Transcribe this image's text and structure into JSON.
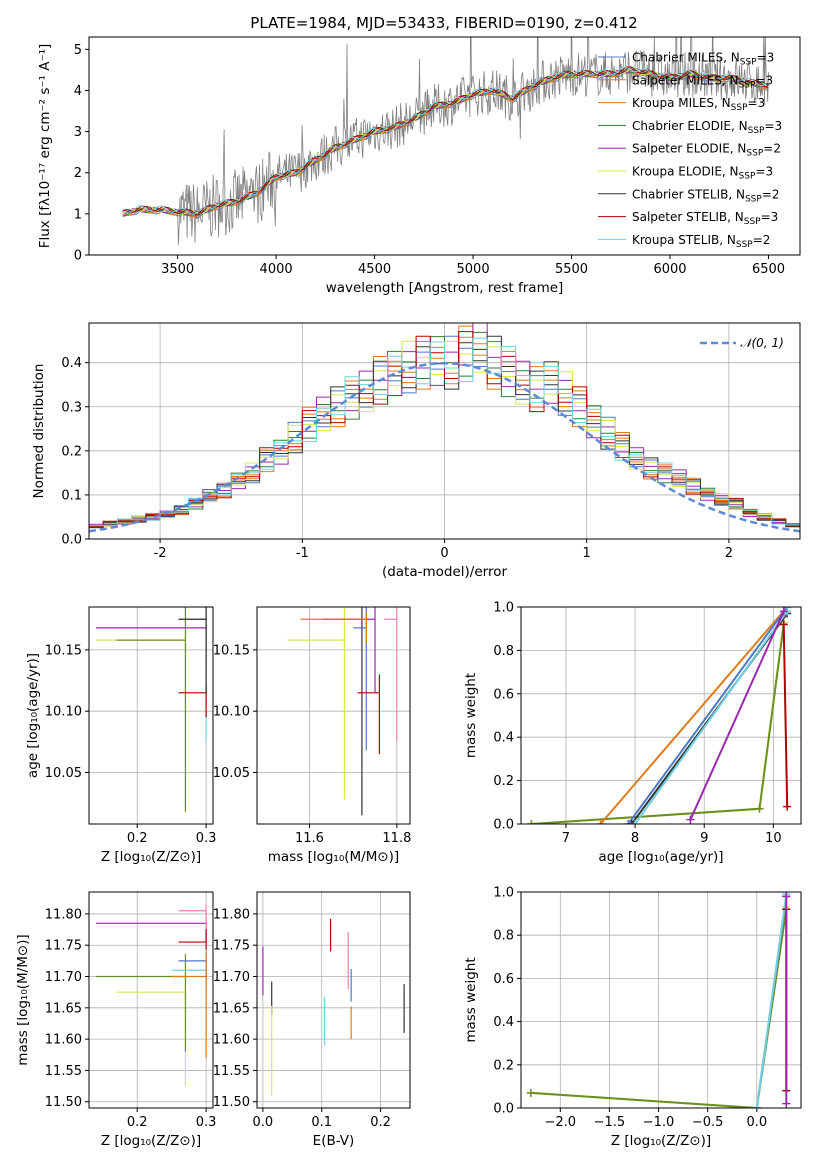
{
  "colors": {
    "blue": "#4e79c9",
    "orange": "#e07b1a",
    "olive": "#6b8e23",
    "green": "#2e7d32",
    "purple": "#9c27b0",
    "yellow": "#d8e84a",
    "dark": "#333333",
    "red": "#b00000",
    "cyan": "#70d0e0",
    "pink": "#f080b0",
    "gray": "#808080",
    "grid": "#b0b0b0"
  },
  "series_models": [
    {
      "label": "Chabrier MILES",
      "nssp": "3",
      "color": "#4e79c9"
    },
    {
      "label": "Salpeter MILES",
      "nssp": "3",
      "color": "#e07b1a"
    },
    {
      "label": "Kroupa MILES",
      "nssp": "3",
      "color": "#e07b1a"
    },
    {
      "label": "Chabrier ELODIE",
      "nssp": "3",
      "color": "#2e7d32"
    },
    {
      "label": "Salpeter ELODIE",
      "nssp": "2",
      "color": "#9c27b0"
    },
    {
      "label": "Kroupa ELODIE",
      "nssp": "3",
      "color": "#d8e84a"
    },
    {
      "label": "Chabrier STELIB",
      "nssp": "2",
      "color": "#333333"
    },
    {
      "label": "Salpeter STELIB",
      "nssp": "3",
      "color": "#b00000"
    },
    {
      "label": "Kroupa STELIB",
      "nssp": "2",
      "color": "#70d0e0"
    }
  ],
  "chart_data": [
    {
      "id": "spectrum",
      "type": "line",
      "title": "PLATE=1984, MJD=53433, FIBERID=0190, z=0.412",
      "xlabel": "wavelength [Angstrom, rest frame]",
      "ylabel": "Flux [fλ10⁻¹⁷ erg cm⁻² s⁻¹ A⁻¹]",
      "xlim": [
        3050,
        6660
      ],
      "ylim": [
        0,
        5.3
      ],
      "xticks": [
        3500,
        4000,
        4500,
        5000,
        5500,
        6000,
        6500
      ],
      "yticks": [
        0,
        1,
        2,
        3,
        4,
        5
      ],
      "model_x": [
        3220,
        3300,
        3400,
        3500,
        3600,
        3700,
        3800,
        3900,
        4000,
        4100,
        4200,
        4300,
        4400,
        4500,
        4600,
        4700,
        4800,
        4900,
        5000,
        5100,
        5200,
        5300,
        5400,
        5500,
        5600,
        5700,
        5800,
        5900,
        6000,
        6100,
        6200,
        6300,
        6400,
        6500
      ],
      "model_y": [
        1.0,
        1.1,
        1.1,
        1.05,
        1.0,
        1.2,
        1.3,
        1.5,
        1.9,
        2.0,
        2.3,
        2.6,
        2.8,
        3.0,
        3.1,
        3.3,
        3.6,
        3.7,
        3.9,
        4.0,
        3.8,
        4.1,
        4.3,
        4.4,
        4.4,
        4.4,
        4.5,
        4.4,
        4.3,
        4.4,
        4.3,
        4.3,
        4.2,
        4.1
      ],
      "legend": "upper right"
    },
    {
      "id": "residuals",
      "type": "histogram",
      "xlabel": "(data-model)/error",
      "ylabel": "Normed distribution",
      "xlim": [
        -2.5,
        2.5
      ],
      "ylim": [
        0,
        0.49
      ],
      "xticks": [
        -2,
        -1,
        0,
        1,
        2
      ],
      "yticks": [
        0.0,
        0.1,
        0.2,
        0.3,
        0.4
      ],
      "bin_width": 0.1,
      "hist_centers": [
        -2.45,
        -2.35,
        -2.25,
        -2.15,
        -2.05,
        -1.95,
        -1.85,
        -1.75,
        -1.65,
        -1.55,
        -1.45,
        -1.35,
        -1.25,
        -1.15,
        -1.05,
        -0.95,
        -0.85,
        -0.75,
        -0.65,
        -0.55,
        -0.45,
        -0.35,
        -0.25,
        -0.15,
        -0.05,
        0.05,
        0.15,
        0.25,
        0.35,
        0.45,
        0.55,
        0.65,
        0.75,
        0.85,
        0.95,
        1.05,
        1.15,
        1.25,
        1.35,
        1.45,
        1.55,
        1.65,
        1.75,
        1.85,
        1.95,
        2.05,
        2.15,
        2.25,
        2.35,
        2.45
      ],
      "hist_values": [
        0.03,
        0.035,
        0.04,
        0.045,
        0.05,
        0.055,
        0.065,
        0.08,
        0.1,
        0.11,
        0.13,
        0.15,
        0.18,
        0.2,
        0.23,
        0.26,
        0.28,
        0.3,
        0.32,
        0.34,
        0.36,
        0.37,
        0.39,
        0.4,
        0.41,
        0.4,
        0.42,
        0.43,
        0.4,
        0.38,
        0.36,
        0.34,
        0.35,
        0.33,
        0.3,
        0.27,
        0.24,
        0.21,
        0.18,
        0.16,
        0.15,
        0.14,
        0.12,
        0.1,
        0.09,
        0.08,
        0.06,
        0.05,
        0.04,
        0.03
      ],
      "gaussian_label": "𝒩(0, 1)",
      "legend": "upper right"
    },
    {
      "id": "age_vs_Z",
      "type": "scatter",
      "xlabel": "Z [log₁₀(Z/Z⊙)]",
      "ylabel": "age [log₁₀(age/yr)]",
      "xlim": [
        0.13,
        0.31
      ],
      "ylim": [
        10.008,
        10.185
      ],
      "xticks": [
        0.2,
        0.3
      ],
      "yticks": [
        10.05,
        10.1,
        10.15
      ],
      "points": [
        {
          "x": 0.27,
          "y": 10.158,
          "xerr": 0.13,
          "yerr": 0.14,
          "color": "#d8e84a"
        },
        {
          "x": 0.3,
          "y": 10.175,
          "xerr": 0.04,
          "yerr": 0.04,
          "color": "#f080b0"
        },
        {
          "x": 0.3,
          "y": 10.168,
          "xerr": 0.16,
          "yerr": 0.02,
          "color": "#9c27b0"
        },
        {
          "x": 0.3,
          "y": 10.175,
          "xerr": 0.015,
          "yerr": 0.1,
          "color": "#70d0e0"
        },
        {
          "x": 0.27,
          "y": 10.158,
          "xerr": 0.1,
          "yerr": 0.14,
          "color": "#6b8e23"
        },
        {
          "x": 0.3,
          "y": 10.115,
          "xerr": 0.04,
          "yerr": 0.02,
          "color": "#b00000"
        },
        {
          "x": 0.3,
          "y": 10.175,
          "xerr": 0.04,
          "yerr": 0.06,
          "color": "#333333"
        }
      ]
    },
    {
      "id": "age_vs_mass",
      "type": "scatter",
      "xlabel": "mass [log₁₀(M/M⊙)]",
      "ylabel": "",
      "xlim": [
        11.48,
        11.83
      ],
      "ylim": [
        10.008,
        10.185
      ],
      "xticks": [
        11.6,
        11.8
      ],
      "yticks": [
        10.05,
        10.1,
        10.15
      ],
      "points": [
        {
          "x": 11.68,
          "y": 10.158,
          "xerr": 0.13,
          "yerr": 0.13,
          "color": "#d8e84a"
        },
        {
          "x": 11.72,
          "y": 10.175,
          "xerr": 0.09,
          "yerr": 0.16,
          "color": "#333333"
        },
        {
          "x": 11.73,
          "y": 10.168,
          "xerr": 0.03,
          "yerr": 0.1,
          "color": "#4e79c9"
        },
        {
          "x": 11.76,
          "y": 10.115,
          "xerr": 0.05,
          "yerr": 0.05,
          "color": "#b00000"
        },
        {
          "x": 11.8,
          "y": 10.175,
          "xerr": 0.03,
          "yerr": 0.1,
          "color": "#f080b0"
        },
        {
          "x": 11.75,
          "y": 10.175,
          "xerr": 0.05,
          "yerr": 0.06,
          "color": "#9c27b0"
        },
        {
          "x": 11.73,
          "y": 10.175,
          "xerr": 0.15,
          "yerr": 0.02,
          "color": "#e07b1a"
        }
      ]
    },
    {
      "id": "weight_vs_age",
      "type": "line",
      "xlabel": "age [log₁₀(age/yr)]",
      "ylabel": "mass weight",
      "xlim": [
        6.35,
        10.4
      ],
      "ylim": [
        0,
        1
      ],
      "xticks": [
        7,
        8,
        9,
        10
      ],
      "yticks": [
        0.0,
        0.2,
        0.4,
        0.6,
        0.8,
        1.0
      ],
      "series": [
        {
          "color": "#d8e84a",
          "x": [
            6.5,
            9.8,
            10.15
          ],
          "y": [
            0.0,
            0.07,
            0.93
          ]
        },
        {
          "color": "#6b8e23",
          "x": [
            6.5,
            9.8,
            10.15
          ],
          "y": [
            0.0,
            0.07,
            0.92
          ]
        },
        {
          "color": "#e07b1a",
          "x": [
            7.5,
            10.2
          ],
          "y": [
            0.0,
            1.0
          ]
        },
        {
          "color": "#4e79c9",
          "x": [
            7.9,
            10.2
          ],
          "y": [
            0.0,
            1.0
          ]
        },
        {
          "color": "#333333",
          "x": [
            7.95,
            10.2
          ],
          "y": [
            0.0,
            0.97
          ]
        },
        {
          "color": "#70d0e0",
          "x": [
            8.0,
            10.2
          ],
          "y": [
            0.0,
            0.98
          ]
        },
        {
          "color": "#9c27b0",
          "x": [
            8.8,
            10.15
          ],
          "y": [
            0.02,
            0.98
          ]
        },
        {
          "color": "#b00000",
          "x": [
            10.15,
            10.2
          ],
          "y": [
            0.92,
            0.08
          ]
        }
      ]
    },
    {
      "id": "mass_vs_Z",
      "type": "scatter",
      "xlabel": "Z [log₁₀(Z/Z⊙)]",
      "ylabel": "mass [log₁₀(M/M⊙)]",
      "xlim": [
        0.13,
        0.31
      ],
      "ylim": [
        11.49,
        11.835
      ],
      "xticks": [
        0.2,
        0.3
      ],
      "yticks": [
        11.5,
        11.55,
        11.6,
        11.65,
        11.7,
        11.75,
        11.8
      ],
      "points": [
        {
          "x": 0.27,
          "y": 11.675,
          "xerr": 0.1,
          "yerr": 0.15,
          "color": "#d8e84a"
        },
        {
          "x": 0.27,
          "y": 11.7,
          "xerr": 0.13,
          "yerr": 0.12,
          "color": "#6b8e23"
        },
        {
          "x": 0.3,
          "y": 11.785,
          "xerr": 0.16,
          "yerr": 0.03,
          "color": "#9c27b0"
        },
        {
          "x": 0.3,
          "y": 11.805,
          "xerr": 0.04,
          "yerr": 0.03,
          "color": "#f080b0"
        },
        {
          "x": 0.3,
          "y": 11.755,
          "xerr": 0.04,
          "yerr": 0.07,
          "color": "#b00000"
        },
        {
          "x": 0.3,
          "y": 11.725,
          "xerr": 0.04,
          "yerr": 0.03,
          "color": "#4e79c9"
        },
        {
          "x": 0.3,
          "y": 11.71,
          "xerr": 0.05,
          "yerr": 0.11,
          "color": "#70d0e0"
        },
        {
          "x": 0.3,
          "y": 11.7,
          "xerr": 0.05,
          "yerr": 0.13,
          "color": "#e07b1a"
        }
      ]
    },
    {
      "id": "mass_vs_ebv",
      "type": "scatter",
      "xlabel": "E(B-V)",
      "ylabel": "",
      "xlim": [
        -0.01,
        0.25
      ],
      "ylim": [
        11.49,
        11.835
      ],
      "xticks": [
        0.0,
        0.1,
        0.2
      ],
      "yticks": [
        11.5,
        11.55,
        11.6,
        11.65,
        11.7,
        11.75,
        11.8
      ],
      "points": [
        {
          "x": 0.0,
          "y": 11.73,
          "yerr": 0.06,
          "color": "#9c27b0"
        },
        {
          "x": 0.015,
          "y": 11.68,
          "yerr": 0.04,
          "color": "#333333"
        },
        {
          "x": 0.015,
          "y": 11.62,
          "yerr": 0.11,
          "color": "#d8e84a"
        },
        {
          "x": 0.105,
          "y": 11.65,
          "yerr": 0.06,
          "color": "#70d0e0"
        },
        {
          "x": 0.115,
          "y": 11.78,
          "yerr": 0.04,
          "color": "#b00000"
        },
        {
          "x": 0.145,
          "y": 11.75,
          "yerr": 0.07,
          "color": "#f080b0"
        },
        {
          "x": 0.15,
          "y": 11.7,
          "yerr": 0.04,
          "color": "#4e79c9"
        },
        {
          "x": 0.15,
          "y": 11.64,
          "yerr": 0.04,
          "color": "#e07b1a"
        },
        {
          "x": 0.24,
          "y": 11.67,
          "yerr": 0.06,
          "color": "#333333"
        }
      ]
    },
    {
      "id": "weight_vs_Z",
      "type": "line",
      "xlabel": "Z [log₁₀(Z/Z⊙)]",
      "ylabel": "mass weight",
      "xlim": [
        -2.4,
        0.45
      ],
      "ylim": [
        0,
        1
      ],
      "xticks": [
        -2.0,
        -1.5,
        -1.0,
        -0.5,
        0.0
      ],
      "yticks": [
        0.0,
        0.2,
        0.4,
        0.6,
        0.8,
        1.0
      ],
      "series": [
        {
          "color": "#d8e84a",
          "x": [
            -2.3,
            0.0,
            0.3
          ],
          "y": [
            0.07,
            0.0,
            0.93
          ]
        },
        {
          "color": "#6b8e23",
          "x": [
            -2.3,
            0.0,
            0.3
          ],
          "y": [
            0.07,
            0.0,
            0.92
          ]
        },
        {
          "color": "#4e79c9",
          "x": [
            0.0,
            0.3
          ],
          "y": [
            0.0,
            0.98
          ]
        },
        {
          "color": "#70d0e0",
          "x": [
            0.0,
            0.3
          ],
          "y": [
            0.0,
            0.99
          ]
        },
        {
          "color": "#b00000",
          "x": [
            0.3,
            0.3
          ],
          "y": [
            0.92,
            0.08
          ]
        },
        {
          "color": "#9c27b0",
          "x": [
            0.3,
            0.3
          ],
          "y": [
            0.98,
            0.02
          ]
        }
      ]
    }
  ]
}
